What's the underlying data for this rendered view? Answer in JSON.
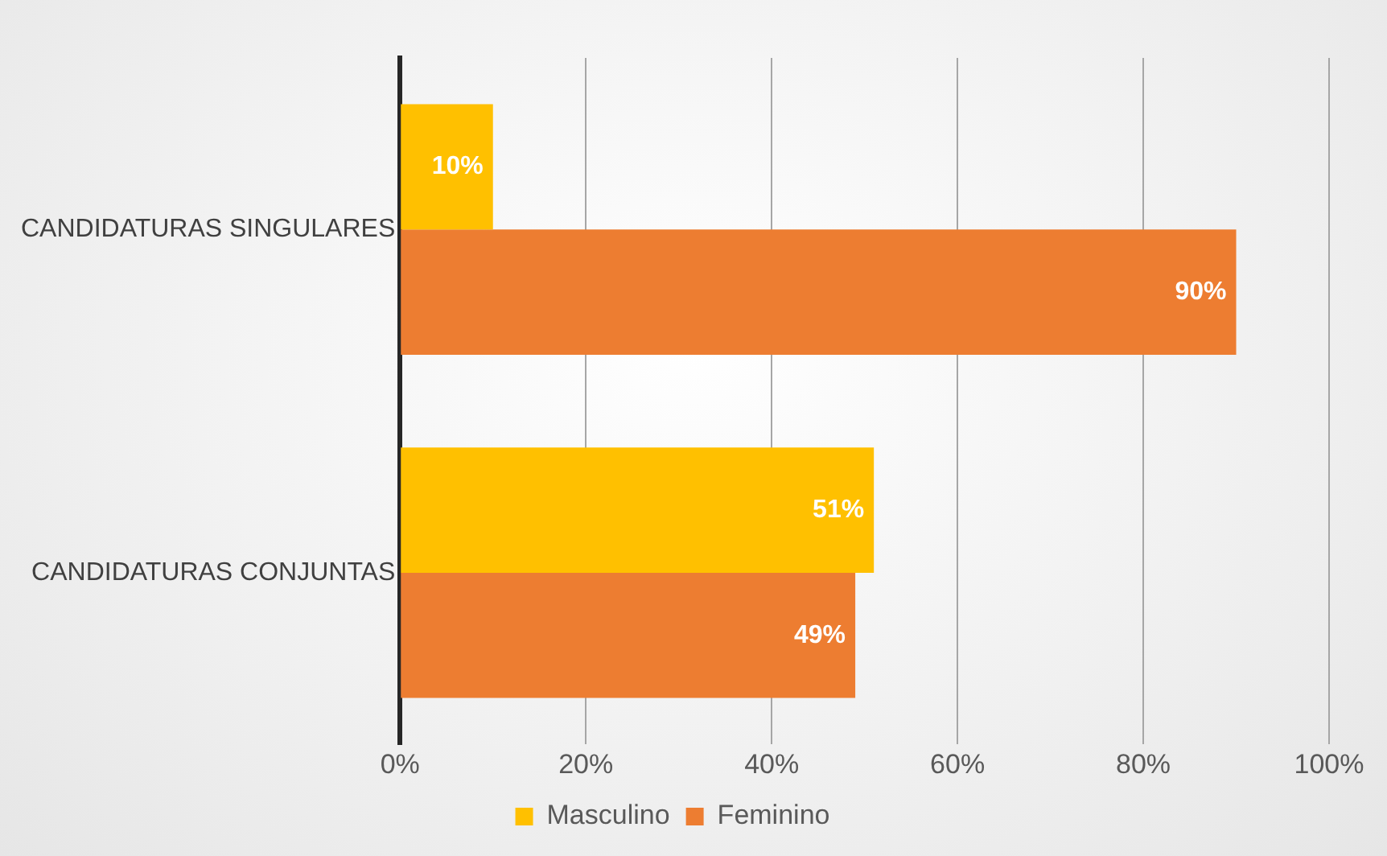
{
  "chart_data": {
    "type": "bar",
    "orientation": "horizontal",
    "categories": [
      "CANDIDATURAS SINGULARES",
      "CANDIDATURAS CONJUNTAS"
    ],
    "series": [
      {
        "name": "Masculino",
        "color": "#ffc000",
        "values": [
          10,
          51
        ],
        "value_labels": [
          "10%",
          "51%"
        ]
      },
      {
        "name": "Feminino",
        "color": "#ed7d31",
        "values": [
          90,
          49
        ],
        "value_labels": [
          "90%",
          "49%"
        ]
      }
    ],
    "xlim": [
      0,
      100
    ],
    "xticks": [
      {
        "value": 0,
        "label": "0%"
      },
      {
        "value": 20,
        "label": "20%"
      },
      {
        "value": 40,
        "label": "40%"
      },
      {
        "value": 60,
        "label": "60%"
      },
      {
        "value": 80,
        "label": "80%"
      },
      {
        "value": 100,
        "label": "100%"
      }
    ],
    "grid": "x",
    "legend": "bottom"
  }
}
